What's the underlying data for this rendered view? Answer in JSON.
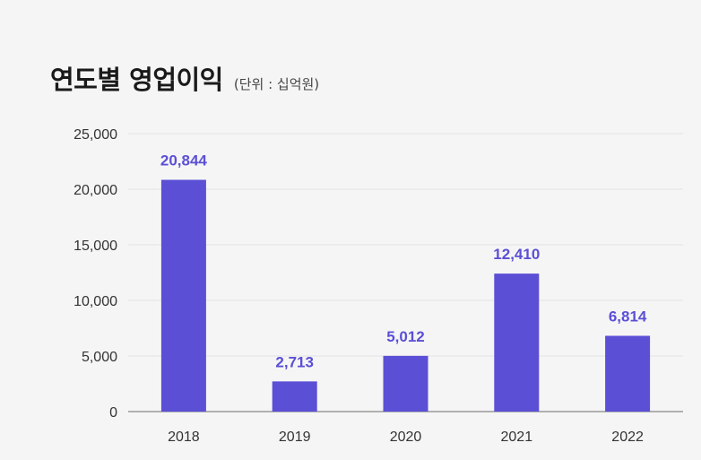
{
  "chart_data": {
    "type": "bar",
    "title": "연도별 영업이익",
    "subtitle": "(단위 : 십억원)",
    "categories": [
      "2018",
      "2019",
      "2020",
      "2021",
      "2022"
    ],
    "values": [
      20844,
      2713,
      5012,
      12410,
      6814
    ],
    "value_labels": [
      "20,844",
      "2,713",
      "5,012",
      "12,410",
      "6,814"
    ],
    "ylim": [
      0,
      25000
    ],
    "yticks": [
      0,
      5000,
      10000,
      15000,
      20000,
      25000
    ],
    "ytick_labels": [
      "0",
      "5,000",
      "10,000",
      "15,000",
      "20,000",
      "25,000"
    ],
    "xlabel": "",
    "ylabel": "",
    "grid": true,
    "legend": "none",
    "bar_color": "#5b4fd6",
    "label_color": "#5b4fd6",
    "grid_color": "#e3e3e3",
    "axis_color": "#888888"
  }
}
